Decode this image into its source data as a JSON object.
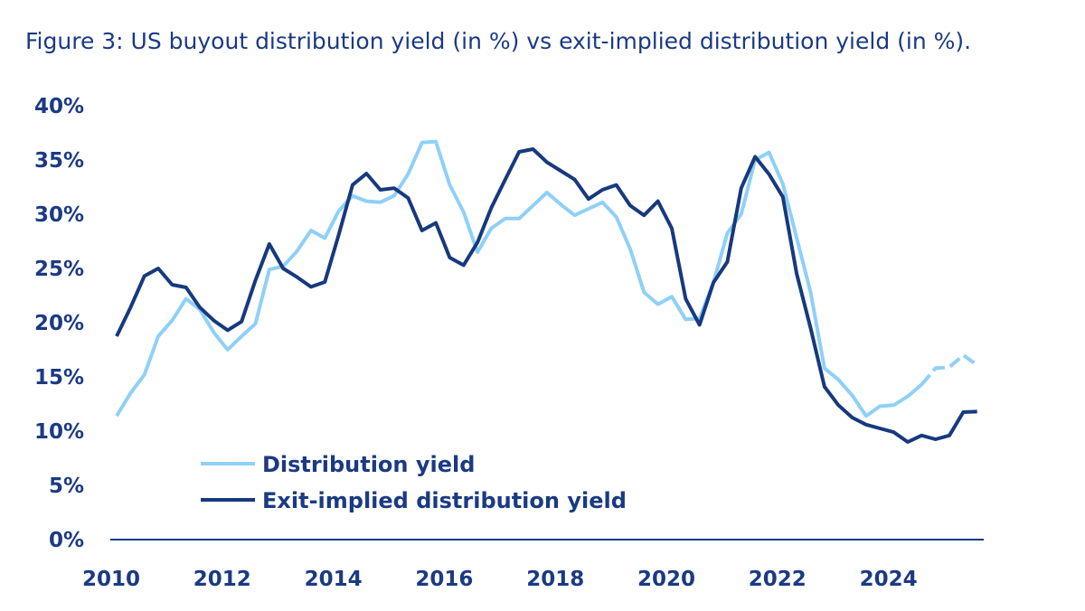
{
  "colors": {
    "text": "#1b3a84",
    "distribution": "#8fd0f7",
    "exit_implied": "#17397e"
  },
  "chart_data": {
    "type": "line",
    "title": "Figure 3: US buyout distribution yield (in %) vs exit-implied distribution yield (in %).",
    "xlabel": "",
    "ylabel": "",
    "ylim": [
      0,
      40
    ],
    "xlim": [
      2010,
      2025.5
    ],
    "yticks": [
      "0%",
      "5%",
      "10%",
      "15%",
      "20%",
      "25%",
      "30%",
      "35%",
      "40%"
    ],
    "ytick_values": [
      0,
      5,
      10,
      15,
      20,
      25,
      30,
      35,
      40
    ],
    "xticks": [
      "2010",
      "2012",
      "2014",
      "2016",
      "2018",
      "2020",
      "2022",
      "2024"
    ],
    "xtick_values": [
      2010,
      2012,
      2014,
      2016,
      2018,
      2020,
      2022,
      2024
    ],
    "x_start": 2010,
    "x_step": 0.25,
    "grid": false,
    "legend_placement": "bottom-left",
    "series": [
      {
        "name": "Distribution yield",
        "dashed_from_index": 58,
        "values": [
          11.4,
          13.5,
          15.2,
          18.75,
          20.2,
          22.2,
          21.2,
          19.1,
          17.5,
          18.75,
          19.9,
          24.9,
          25.2,
          26.6,
          28.5,
          27.8,
          30.3,
          31.7,
          31.2,
          31.1,
          31.7,
          33.7,
          36.6,
          36.7,
          32.7,
          30.2,
          26.5,
          28.7,
          29.6,
          29.6,
          30.8,
          32.0,
          30.9,
          29.9,
          30.5,
          31.1,
          29.75,
          26.8,
          22.8,
          21.7,
          22.4,
          20.3,
          20.4,
          23.7,
          28.25,
          30.0,
          35.0,
          35.7,
          32.8,
          27.8,
          22.8,
          15.8,
          14.75,
          13.3,
          11.4,
          12.3,
          12.4,
          13.2,
          14.3,
          15.8,
          15.9,
          17.0,
          16.1
        ]
      },
      {
        "name": "Exit-implied distribution yield",
        "values": [
          18.75,
          21.4,
          24.3,
          25.0,
          23.5,
          23.25,
          21.4,
          20.2,
          19.3,
          20.1,
          23.9,
          27.25,
          25.0,
          24.2,
          23.3,
          23.75,
          28.1,
          32.7,
          33.75,
          32.25,
          32.4,
          31.5,
          28.5,
          29.2,
          26.0,
          25.3,
          27.4,
          30.6,
          33.2,
          35.75,
          36.0,
          34.8,
          34.0,
          33.2,
          31.4,
          32.25,
          32.7,
          30.8,
          29.9,
          31.2,
          28.7,
          22.2,
          19.8,
          23.7,
          25.6,
          32.4,
          35.3,
          33.7,
          31.6,
          24.5,
          19.5,
          14.1,
          12.4,
          11.25,
          10.6,
          10.25,
          9.9,
          9.0,
          9.6,
          9.25,
          9.6,
          11.75,
          11.8
        ]
      }
    ]
  }
}
